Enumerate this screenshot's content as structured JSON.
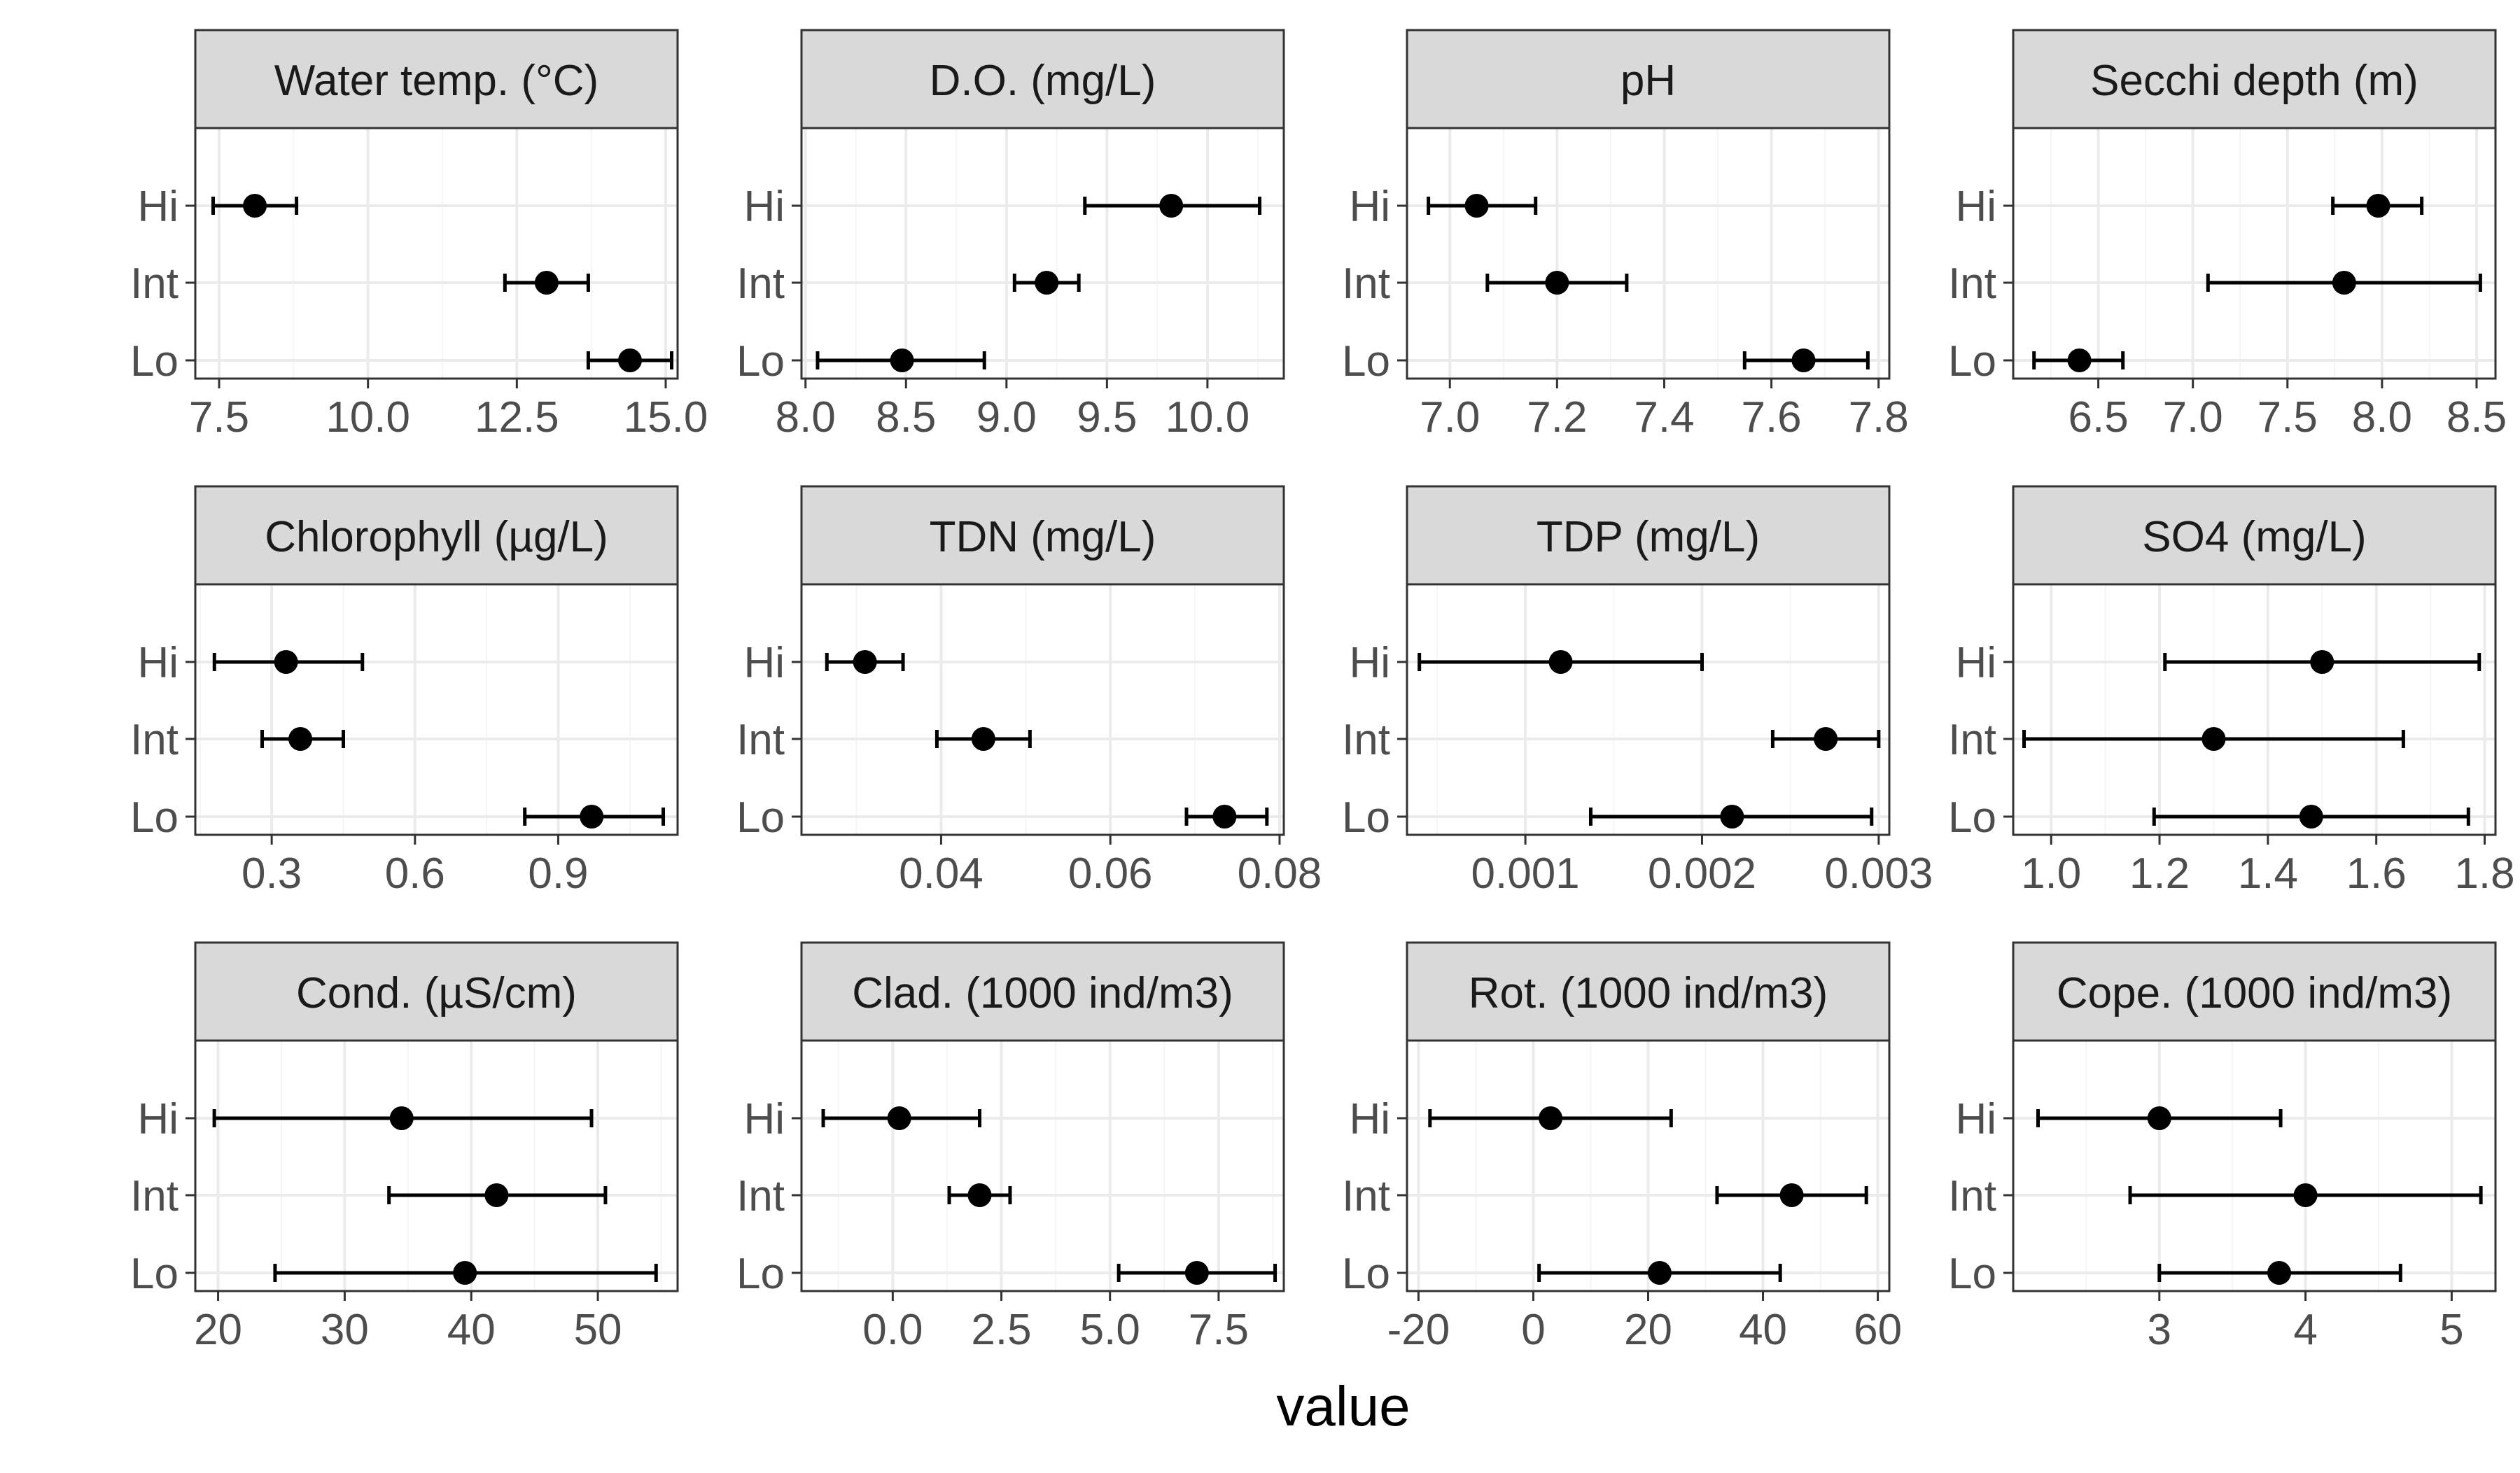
{
  "figure": {
    "xlabel": "value",
    "categories": [
      "Hi",
      "Int",
      "Lo"
    ],
    "colors": {
      "strip_fill": "#d9d9d9",
      "panel_border": "#333333",
      "grid_major": "#ebebeb",
      "grid_minor": "#f5f5f5",
      "point": "#000000",
      "tick_label": "#4d4d4d",
      "text": "#1a1a1a"
    }
  },
  "chart_data": [
    {
      "type": "dot-errorbar",
      "title": "Water temp. (°C)",
      "xlim": [
        7.1,
        15.2
      ],
      "xticks": [
        7.5,
        10.0,
        12.5,
        15.0
      ],
      "xtick_labels": [
        "7.5",
        "10.0",
        "12.5",
        "15.0"
      ],
      "points": [
        {
          "category": "Hi",
          "value": 8.1,
          "lower": 7.4,
          "upper": 8.8
        },
        {
          "category": "Int",
          "value": 13.0,
          "lower": 12.3,
          "upper": 13.7
        },
        {
          "category": "Lo",
          "value": 14.4,
          "lower": 13.7,
          "upper": 15.1
        }
      ]
    },
    {
      "type": "dot-errorbar",
      "title": "D.O. (mg/L)",
      "xlim": [
        7.98,
        10.38
      ],
      "xticks": [
        8.0,
        8.5,
        9.0,
        9.5,
        10.0
      ],
      "xtick_labels": [
        "8.0",
        "8.5",
        "9.0",
        "9.5",
        "10.0"
      ],
      "points": [
        {
          "category": "Hi",
          "value": 9.82,
          "lower": 9.39,
          "upper": 10.26
        },
        {
          "category": "Int",
          "value": 9.2,
          "lower": 9.04,
          "upper": 9.36
        },
        {
          "category": "Lo",
          "value": 8.48,
          "lower": 8.06,
          "upper": 8.89
        }
      ]
    },
    {
      "type": "dot-errorbar",
      "title": "pH",
      "xlim": [
        6.92,
        7.82
      ],
      "xticks": [
        7.0,
        7.2,
        7.4,
        7.6,
        7.8
      ],
      "xtick_labels": [
        "7.0",
        "7.2",
        "7.4",
        "7.6",
        "7.8"
      ],
      "points": [
        {
          "category": "Hi",
          "value": 7.05,
          "lower": 6.96,
          "upper": 7.16
        },
        {
          "category": "Int",
          "value": 7.2,
          "lower": 7.07,
          "upper": 7.33
        },
        {
          "category": "Lo",
          "value": 7.66,
          "lower": 7.55,
          "upper": 7.78
        }
      ]
    },
    {
      "type": "dot-errorbar",
      "title": "Secchi depth (m)",
      "xlim": [
        6.05,
        8.6
      ],
      "xticks": [
        6.5,
        7.0,
        7.5,
        8.0,
        8.5
      ],
      "xtick_labels": [
        "6.5",
        "7.0",
        "7.5",
        "8.0",
        "8.5"
      ],
      "points": [
        {
          "category": "Hi",
          "value": 7.98,
          "lower": 7.74,
          "upper": 8.21
        },
        {
          "category": "Int",
          "value": 7.8,
          "lower": 7.08,
          "upper": 8.52
        },
        {
          "category": "Lo",
          "value": 6.4,
          "lower": 6.16,
          "upper": 6.63
        }
      ]
    },
    {
      "type": "dot-errorbar",
      "title": "Chlorophyll (µg/L)",
      "xlim": [
        0.14,
        1.15
      ],
      "xticks": [
        0.3,
        0.6,
        0.9
      ],
      "xtick_labels": [
        "0.3",
        "0.6",
        "0.9"
      ],
      "points": [
        {
          "category": "Hi",
          "value": 0.33,
          "lower": 0.18,
          "upper": 0.49
        },
        {
          "category": "Int",
          "value": 0.36,
          "lower": 0.28,
          "upper": 0.45
        },
        {
          "category": "Lo",
          "value": 0.97,
          "lower": 0.83,
          "upper": 1.12
        }
      ]
    },
    {
      "type": "dot-errorbar",
      "title": "TDN (mg/L)",
      "xlim": [
        0.0235,
        0.0805
      ],
      "xticks": [
        0.04,
        0.06,
        0.08
      ],
      "xtick_labels": [
        "0.04",
        "0.06",
        "0.08"
      ],
      "points": [
        {
          "category": "Hi",
          "value": 0.031,
          "lower": 0.0265,
          "upper": 0.0355
        },
        {
          "category": "Int",
          "value": 0.045,
          "lower": 0.0395,
          "upper": 0.0505
        },
        {
          "category": "Lo",
          "value": 0.0735,
          "lower": 0.069,
          "upper": 0.0785
        }
      ]
    },
    {
      "type": "dot-errorbar",
      "title": "TDP (mg/L)",
      "xlim": [
        0.00033,
        0.00306
      ],
      "xticks": [
        0.001,
        0.002,
        0.003
      ],
      "xtick_labels": [
        "0.001",
        "0.002",
        "0.003"
      ],
      "points": [
        {
          "category": "Hi",
          "value": 0.0012,
          "lower": 0.0004,
          "upper": 0.002
        },
        {
          "category": "Int",
          "value": 0.0027,
          "lower": 0.0024,
          "upper": 0.003
        },
        {
          "category": "Lo",
          "value": 0.00217,
          "lower": 0.00137,
          "upper": 0.00296
        }
      ]
    },
    {
      "type": "dot-errorbar",
      "title": "SO4 (mg/L)",
      "xlim": [
        0.93,
        1.82
      ],
      "xticks": [
        1.0,
        1.2,
        1.4,
        1.6,
        1.8
      ],
      "xtick_labels": [
        "1.0",
        "1.2",
        "1.4",
        "1.6",
        "1.8"
      ],
      "points": [
        {
          "category": "Hi",
          "value": 1.5,
          "lower": 1.21,
          "upper": 1.79
        },
        {
          "category": "Int",
          "value": 1.3,
          "lower": 0.95,
          "upper": 1.65
        },
        {
          "category": "Lo",
          "value": 1.48,
          "lower": 1.19,
          "upper": 1.77
        }
      ]
    },
    {
      "type": "dot-errorbar",
      "title": "Cond. (µS/cm)",
      "xlim": [
        18.2,
        56.3
      ],
      "xticks": [
        20,
        30,
        40,
        50
      ],
      "xtick_labels": [
        "20",
        "30",
        "40",
        "50"
      ],
      "points": [
        {
          "category": "Hi",
          "value": 34.5,
          "lower": 19.7,
          "upper": 49.5
        },
        {
          "category": "Int",
          "value": 42.0,
          "lower": 33.5,
          "upper": 50.6
        },
        {
          "category": "Lo",
          "value": 39.5,
          "lower": 24.5,
          "upper": 54.6
        }
      ]
    },
    {
      "type": "dot-errorbar",
      "title": "Clad. (1000 ind/m3)",
      "xlim": [
        -2.1,
        9.0
      ],
      "xticks": [
        0.0,
        2.5,
        5.0,
        7.5
      ],
      "xtick_labels": [
        "0.0",
        "2.5",
        "5.0",
        "7.5"
      ],
      "points": [
        {
          "category": "Hi",
          "value": 0.15,
          "lower": -1.6,
          "upper": 2.0
        },
        {
          "category": "Int",
          "value": 2.0,
          "lower": 1.3,
          "upper": 2.7
        },
        {
          "category": "Lo",
          "value": 7.0,
          "lower": 5.2,
          "upper": 8.8
        }
      ]
    },
    {
      "type": "dot-errorbar",
      "title": "Rot. (1000 ind/m3)",
      "xlim": [
        -22,
        62
      ],
      "xticks": [
        -20,
        0,
        20,
        40,
        60
      ],
      "xtick_labels": [
        "-20",
        "0",
        "20",
        "40",
        "60"
      ],
      "points": [
        {
          "category": "Hi",
          "value": 3,
          "lower": -18,
          "upper": 24
        },
        {
          "category": "Int",
          "value": 45,
          "lower": 32,
          "upper": 58
        },
        {
          "category": "Lo",
          "value": 22,
          "lower": 1,
          "upper": 43
        }
      ]
    },
    {
      "type": "dot-errorbar",
      "title": "Cope. (1000 ind/m3)",
      "xlim": [
        2.0,
        5.3
      ],
      "xticks": [
        3,
        4,
        5
      ],
      "xtick_labels": [
        "3",
        "4",
        "5"
      ],
      "points": [
        {
          "category": "Hi",
          "value": 3.0,
          "lower": 2.17,
          "upper": 3.83
        },
        {
          "category": "Int",
          "value": 4.0,
          "lower": 2.8,
          "upper": 5.2
        },
        {
          "category": "Lo",
          "value": 3.82,
          "lower": 3.0,
          "upper": 4.65
        }
      ]
    }
  ]
}
